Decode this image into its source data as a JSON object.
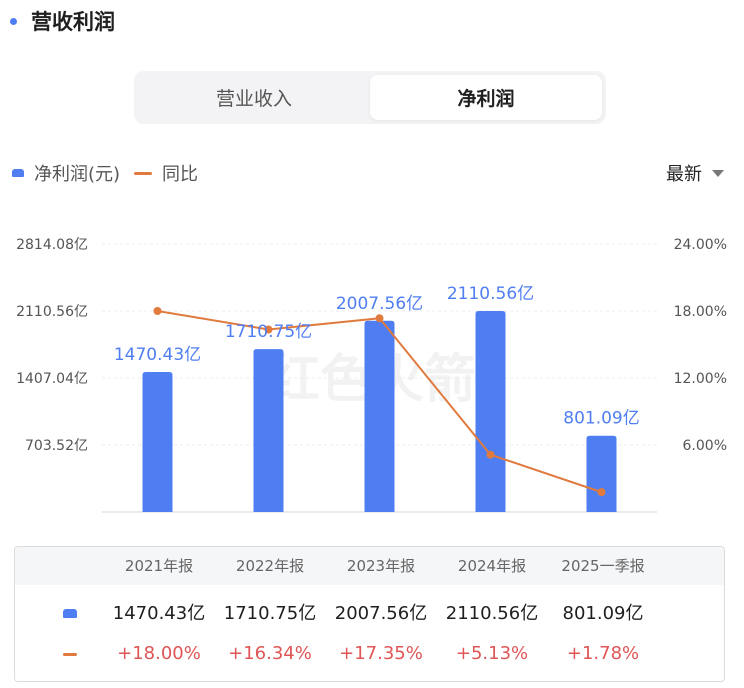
{
  "header": {
    "title": "营收利润"
  },
  "tabs": [
    {
      "label": "营业收入",
      "active": false
    },
    {
      "label": "净利润",
      "active": true
    }
  ],
  "legend": {
    "bar_label": "净利润(元)",
    "line_label": "同比"
  },
  "sort": {
    "label": "最新"
  },
  "watermark": "红色火箭",
  "colors": {
    "bar": "#4f7ef2",
    "line": "#e07a3e",
    "positive": "#e05555"
  },
  "chart_data": {
    "type": "bar",
    "categories": [
      "2021年报",
      "2022年报",
      "2023年报",
      "2024年报",
      "2025一季报"
    ],
    "series": [
      {
        "name": "净利润(元)",
        "type": "bar",
        "axis": "left",
        "values": [
          1470.43,
          1710.75,
          2007.56,
          2110.56,
          801.09
        ],
        "labels": [
          "1470.43亿",
          "1710.75亿",
          "2007.56亿",
          "2110.56亿",
          "801.09亿"
        ]
      },
      {
        "name": "同比",
        "type": "line",
        "axis": "right",
        "values": [
          18.0,
          16.34,
          17.35,
          5.13,
          1.78
        ]
      }
    ],
    "left_axis": {
      "min": 0,
      "max": 2814.08,
      "ticks": [
        "703.52亿",
        "1407.04亿",
        "2110.56亿",
        "2814.08亿"
      ]
    },
    "right_axis": {
      "min": 0,
      "max": 24,
      "ticks": [
        "6.00%",
        "12.00%",
        "18.00%",
        "24.00%"
      ]
    },
    "grid": true
  },
  "table": {
    "headers": [
      "2021年报",
      "2022年报",
      "2023年报",
      "2024年报",
      "2025一季报"
    ],
    "values": [
      "1470.43亿",
      "1710.75亿",
      "2007.56亿",
      "2110.56亿",
      "801.09亿"
    ],
    "yoy": [
      "+18.00%",
      "+16.34%",
      "+17.35%",
      "+5.13%",
      "+1.78%"
    ]
  }
}
